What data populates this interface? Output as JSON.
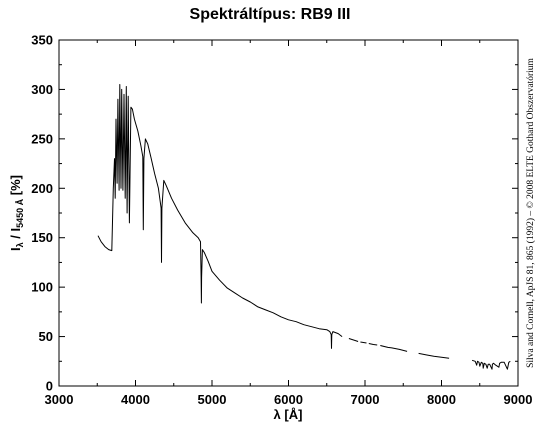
{
  "chart_data": {
    "type": "line",
    "title": "Spektráltípus: RB9 III",
    "xlabel": "λ [Å]",
    "ylabel": {
      "main": "I",
      "lambda_sub": "λ",
      "sep": " / I",
      "sub": "5450 Å",
      "unit": " [%]"
    },
    "credit": "Silva and Cornell, ApJS 81, 865 (1992) – © 2008 ELTE Gothard Obszervatórium",
    "xlim": [
      3000,
      9000
    ],
    "ylim": [
      0,
      350
    ],
    "xticks": [
      3000,
      4000,
      5000,
      6000,
      7000,
      8000,
      9000
    ],
    "yticks": [
      0,
      50,
      100,
      150,
      200,
      250,
      300,
      350
    ],
    "grid": false,
    "series": [
      {
        "x": [
          3510,
          3550,
          3600,
          3650,
          3690,
          3710,
          3725,
          3735,
          3745,
          3760,
          3770,
          3785,
          3795,
          3810,
          3820,
          3835,
          3850,
          3865,
          3880,
          3890,
          3905,
          3920,
          3940,
          3960,
          3970,
          3985,
          4000,
          4030,
          4070,
          4095,
          4102,
          4110,
          4130,
          4160,
          4200,
          4250,
          4300,
          4335,
          4340,
          4345,
          4370,
          4400,
          4470,
          4550,
          4650,
          4750,
          4820,
          4850,
          4858,
          4861,
          4864,
          4875,
          4900,
          4950,
          5000,
          5100,
          5200,
          5300,
          5400,
          5500,
          5600,
          5700,
          5800,
          5900,
          6000,
          6100,
          6200,
          6300,
          6400,
          6500,
          6540,
          6558,
          6562,
          6566,
          6580,
          6650,
          6700
        ],
        "y": [
          152,
          146,
          141,
          138,
          137,
          200,
          230,
          190,
          270,
          205,
          290,
          198,
          305,
          200,
          300,
          198,
          295,
          190,
          303,
          175,
          293,
          165,
          282,
          280,
          276,
          270,
          266,
          258,
          243,
          232,
          158,
          230,
          250,
          245,
          232,
          215,
          200,
          180,
          125,
          180,
          208,
          203,
          190,
          178,
          165,
          155,
          150,
          146,
          110,
          84,
          110,
          138,
          135,
          126,
          116,
          107,
          99,
          94,
          89,
          85,
          80,
          77,
          74,
          70,
          67,
          65,
          62,
          60,
          58,
          57,
          55,
          52,
          38,
          52,
          55,
          53,
          50
        ]
      },
      {
        "x": [
          6790,
          6830,
          6870,
          6910
        ],
        "y": [
          48,
          47,
          46,
          45
        ]
      },
      {
        "x": [
          6940,
          6980,
          7020
        ],
        "y": [
          44.5,
          44,
          43.5
        ]
      },
      {
        "x": [
          7050,
          7110,
          7160
        ],
        "y": [
          43,
          42,
          41.5
        ]
      },
      {
        "x": [
          7200,
          7300,
          7350,
          7450,
          7550
        ],
        "y": [
          41,
          39,
          38.5,
          37,
          35
        ]
      },
      {
        "x": [
          7700,
          7800,
          7900,
          8000,
          8100
        ],
        "y": [
          33,
          31.5,
          30,
          29,
          28
        ]
      },
      {
        "x": [
          8400,
          8440,
          8460,
          8470,
          8490,
          8500,
          8520,
          8540,
          8545,
          8560,
          8580,
          8598,
          8610,
          8630,
          8660,
          8665,
          8680,
          8710,
          8750,
          8760,
          8780,
          8820,
          8862,
          8880,
          8900
        ],
        "y": [
          26,
          25,
          21,
          25,
          24,
          20,
          24,
          23,
          18,
          23,
          22,
          18,
          22,
          22,
          17,
          22,
          23,
          21,
          19,
          23,
          24,
          24,
          17,
          24,
          25
        ]
      }
    ]
  }
}
